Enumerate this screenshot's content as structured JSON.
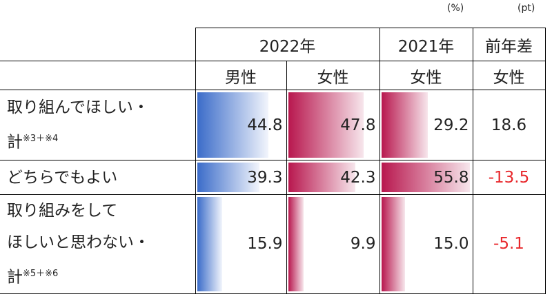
{
  "units": [
    "(%)",
    "(pt)"
  ],
  "header": {
    "years": [
      "2022年",
      "2021年",
      "前年差"
    ],
    "genders": [
      "男性",
      "女性",
      "女性",
      "女性"
    ]
  },
  "rows": [
    {
      "label": [
        "取り組んでほしい・",
        "計"
      ],
      "note": "※3＋※4",
      "values": [
        "44.8",
        "47.8",
        "29.2",
        "18.6"
      ]
    },
    {
      "label": [
        "どちらでもよい"
      ],
      "values": [
        "39.3",
        "42.3",
        "55.8",
        "-13.5"
      ]
    },
    {
      "label": [
        "取り組みをして",
        "ほしいと思わない・",
        "計"
      ],
      "note": "※5＋※6",
      "values": [
        "15.9",
        "9.9",
        "15.0",
        "-5.1"
      ]
    }
  ]
}
